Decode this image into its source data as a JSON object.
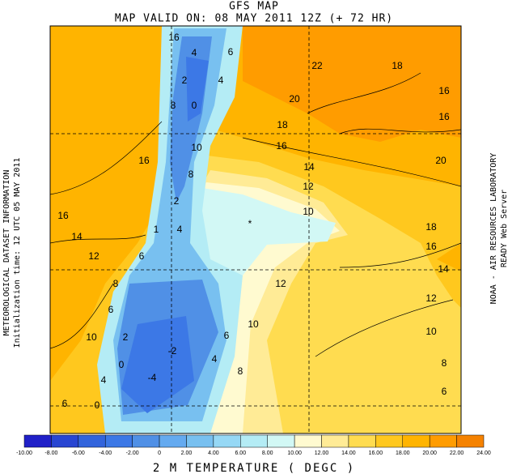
{
  "header": {
    "title": "GFS MAP",
    "valid_time": "MAP VALID ON: 08 MAY 2011 12Z (+ 72 HR)"
  },
  "side": {
    "left_1": "METEOROLOGICAL DATASET INFORMATION",
    "left_2": "Initialization time: 12 UTC 05 MAY 2011",
    "right_1": "NOAA - AIR RESOURCES LABORATORY",
    "right_2": "READY Web Server"
  },
  "map": {
    "marker": "*",
    "contour_labels": [
      "16",
      "4",
      "6",
      "22",
      "18",
      "2",
      "4",
      "16",
      "20",
      "8",
      "0",
      "16",
      "18",
      "16",
      "10",
      "16",
      "20",
      "14",
      "8",
      "12",
      "2",
      "10",
      "16",
      "18",
      "1",
      "4",
      "14",
      "16",
      "12",
      "6",
      "14",
      "8",
      "12",
      "12",
      "6",
      "10",
      "10",
      "2",
      "6",
      "10",
      "-2",
      "4",
      "0",
      "8",
      "8",
      "-4",
      "4",
      "6",
      "6",
      "0"
    ]
  },
  "legend": {
    "title": "2 M TEMPERATURE ( DEGC )",
    "tick_labels": [
      "-10.00",
      "-8.00",
      "-6.00",
      "-4.00",
      "-2.00",
      "0",
      "2.00",
      "4.00",
      "6.00",
      "8.00",
      "10.00",
      "12.00",
      "14.00",
      "16.00",
      "18.00",
      "20.00",
      "22.00",
      "24.00"
    ],
    "colors": [
      "#2020c8",
      "#2846d2",
      "#3264dc",
      "#3c78e6",
      "#5090e6",
      "#64aaf0",
      "#78c0f0",
      "#96d8f5",
      "#b4ecf5",
      "#d2f8f5",
      "#fffad0",
      "#ffeb96",
      "#ffdc50",
      "#ffc81e",
      "#ffb400",
      "#ff9c00",
      "#f58200"
    ]
  }
}
